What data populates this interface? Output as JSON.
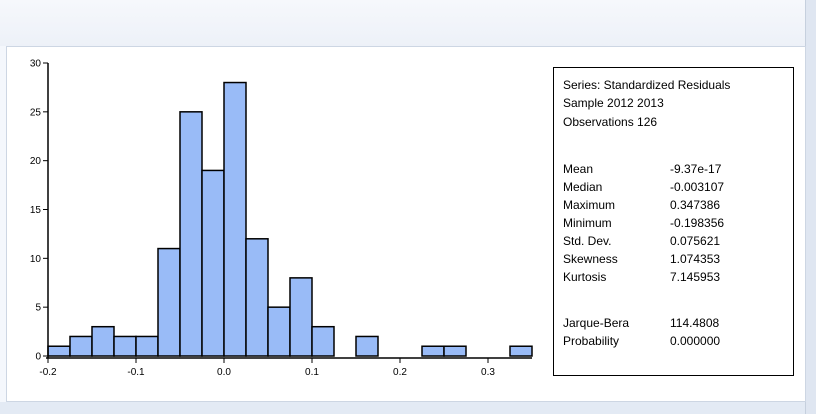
{
  "chart_data": {
    "type": "histogram",
    "bins": [
      {
        "start": -0.2,
        "end": -0.175,
        "count": 1
      },
      {
        "start": -0.175,
        "end": -0.15,
        "count": 2
      },
      {
        "start": -0.15,
        "end": -0.125,
        "count": 3
      },
      {
        "start": -0.125,
        "end": -0.1,
        "count": 2
      },
      {
        "start": -0.1,
        "end": -0.075,
        "count": 2
      },
      {
        "start": -0.075,
        "end": -0.05,
        "count": 11
      },
      {
        "start": -0.05,
        "end": -0.025,
        "count": 25
      },
      {
        "start": -0.025,
        "end": 0.0,
        "count": 19
      },
      {
        "start": 0.0,
        "end": 0.025,
        "count": 28
      },
      {
        "start": 0.025,
        "end": 0.05,
        "count": 12
      },
      {
        "start": 0.05,
        "end": 0.075,
        "count": 5
      },
      {
        "start": 0.075,
        "end": 0.1,
        "count": 8
      },
      {
        "start": 0.1,
        "end": 0.125,
        "count": 3
      },
      {
        "start": 0.125,
        "end": 0.15,
        "count": 0
      },
      {
        "start": 0.15,
        "end": 0.175,
        "count": 2
      },
      {
        "start": 0.175,
        "end": 0.2,
        "count": 0
      },
      {
        "start": 0.2,
        "end": 0.225,
        "count": 0
      },
      {
        "start": 0.225,
        "end": 0.25,
        "count": 1
      },
      {
        "start": 0.25,
        "end": 0.275,
        "count": 1
      },
      {
        "start": 0.275,
        "end": 0.3,
        "count": 0
      },
      {
        "start": 0.3,
        "end": 0.325,
        "count": 0
      },
      {
        "start": 0.325,
        "end": 0.35,
        "count": 1
      }
    ],
    "xlim": [
      -0.2,
      0.35
    ],
    "ylim": [
      0,
      30
    ],
    "x_ticks": [
      -0.2,
      -0.1,
      0.0,
      0.1,
      0.2,
      0.3
    ],
    "x_tick_labels": [
      "-0.2",
      "-0.1",
      "0.0",
      "0.1",
      "0.2",
      "0.3"
    ],
    "y_ticks": [
      0,
      5,
      10,
      15,
      20,
      25,
      30
    ],
    "y_tick_labels": [
      "0",
      "5",
      "10",
      "15",
      "20",
      "25",
      "30"
    ],
    "bar_fill": "#99bbf7",
    "bar_stroke": "#000000",
    "grid": false,
    "legend": "none"
  },
  "stats": {
    "series": "Series: Standardized Residuals",
    "sample": "Sample 2012 2013",
    "observations": "Observations 126",
    "rows": [
      {
        "label": "Mean",
        "value": "-9.37e-17"
      },
      {
        "label": "Median",
        "value": "-0.003107"
      },
      {
        "label": "Maximum",
        "value": "0.347386"
      },
      {
        "label": "Minimum",
        "value": "-0.198356"
      },
      {
        "label": "Std. Dev.",
        "value": "0.075621"
      },
      {
        "label": "Skewness",
        "value": "1.074353"
      },
      {
        "label": "Kurtosis",
        "value": "7.145953"
      }
    ],
    "test_rows": [
      {
        "label": "Jarque-Bera",
        "value": "114.4808"
      },
      {
        "label": "Probability",
        "value": "0.000000"
      }
    ]
  }
}
